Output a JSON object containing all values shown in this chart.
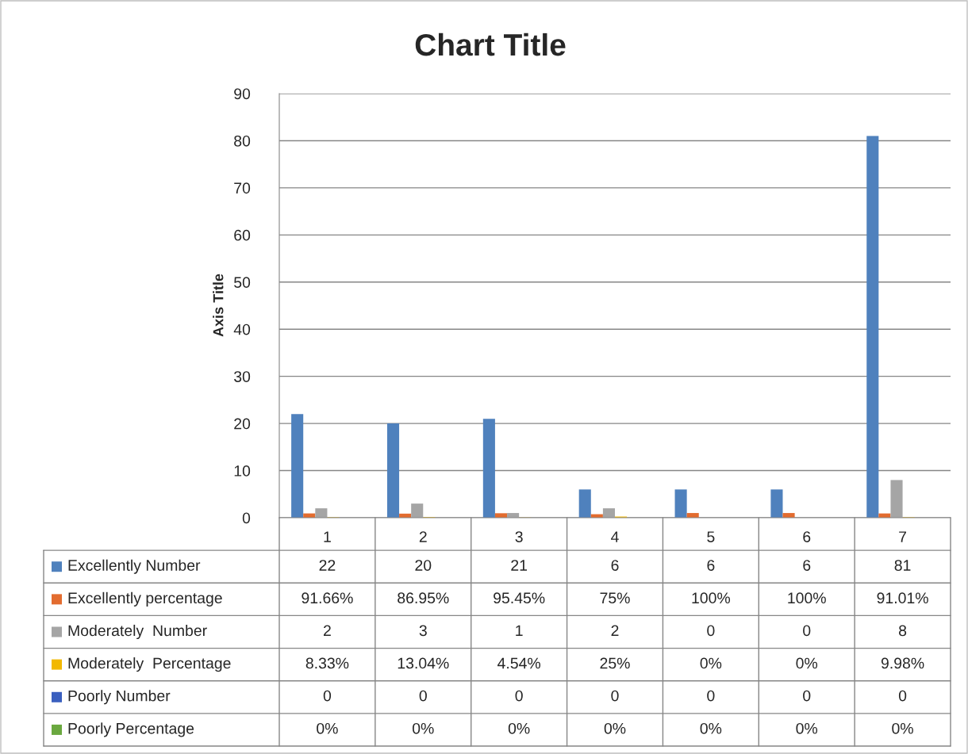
{
  "chart_data": {
    "type": "bar",
    "title": "Chart Title",
    "ylabel": "Axis Title",
    "categories": [
      "1",
      "2",
      "3",
      "4",
      "5",
      "6",
      "7"
    ],
    "ylim": [
      0,
      90
    ],
    "yticks": [
      0,
      10,
      20,
      30,
      40,
      50,
      60,
      70,
      80,
      90
    ],
    "grid": "y",
    "legend": "bottom",
    "series": [
      {
        "name": "Excellently Number",
        "color": "#4f81bd",
        "values": [
          22,
          20,
          21,
          6,
          6,
          6,
          81
        ],
        "value_labels": [
          "22",
          "20",
          "21",
          "6",
          "6",
          "6",
          "81"
        ]
      },
      {
        "name": "Excellently percentage",
        "color": "#e36c2f",
        "values": [
          0.9166,
          0.8695,
          0.9545,
          0.75,
          1,
          1,
          0.9101
        ],
        "value_labels": [
          "91.66%",
          "86.95%",
          "95.45%",
          "75%",
          "100%",
          "100%",
          "91.01%"
        ]
      },
      {
        "name": "Moderately  Number",
        "color": "#a5a5a5",
        "values": [
          2,
          3,
          1,
          2,
          0,
          0,
          8
        ],
        "value_labels": [
          "2",
          "3",
          "1",
          "2",
          "0",
          "0",
          "8"
        ]
      },
      {
        "name": "Moderately  Percentage",
        "color": "#f2b800",
        "values": [
          0.0833,
          0.1304,
          0.0454,
          0.25,
          0,
          0,
          0.0998
        ],
        "value_labels": [
          "8.33%",
          "13.04%",
          "4.54%",
          "25%",
          "0%",
          "0%",
          "9.98%"
        ]
      },
      {
        "name": "Poorly Number",
        "color": "#3a5fbf",
        "values": [
          0,
          0,
          0,
          0,
          0,
          0,
          0
        ],
        "value_labels": [
          "0",
          "0",
          "0",
          "0",
          "0",
          "0",
          "0"
        ]
      },
      {
        "name": "Poorly Percentage",
        "color": "#6aa83f",
        "values": [
          0,
          0,
          0,
          0,
          0,
          0,
          0
        ],
        "value_labels": [
          "0%",
          "0%",
          "0%",
          "0%",
          "0%",
          "0%",
          "0%"
        ]
      }
    ]
  }
}
